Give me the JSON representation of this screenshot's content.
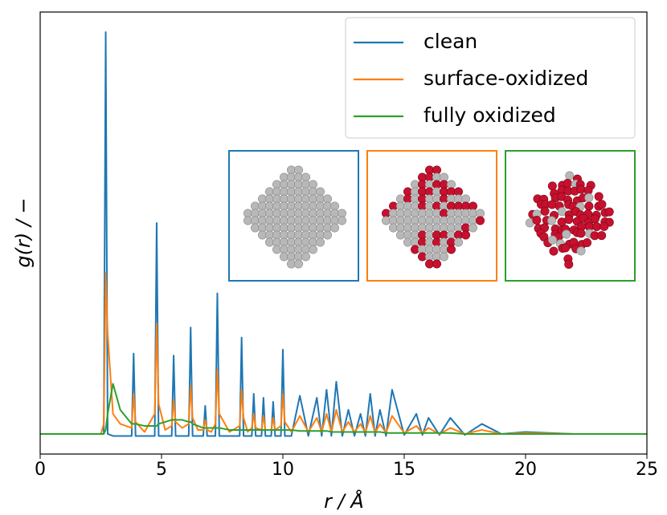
{
  "chart_data": {
    "type": "line",
    "x_label": "r / Å",
    "y_label": "g(r) / −",
    "x": [
      0,
      2.5,
      2.62,
      2.7,
      2.78,
      3.0,
      3.3,
      3.77,
      3.85,
      3.93,
      4.3,
      4.72,
      4.8,
      4.88,
      5.15,
      5.42,
      5.5,
      5.58,
      5.85,
      6.12,
      6.2,
      6.28,
      6.5,
      6.72,
      6.8,
      6.88,
      7.05,
      7.22,
      7.3,
      7.38,
      7.8,
      8.22,
      8.3,
      8.38,
      8.55,
      8.72,
      8.8,
      8.88,
      9.12,
      9.2,
      9.28,
      9.52,
      9.6,
      9.68,
      9.92,
      10.0,
      10.08,
      10.35,
      10.7,
      11.05,
      11.4,
      11.6,
      11.8,
      12.0,
      12.2,
      12.45,
      12.7,
      12.95,
      13.2,
      13.4,
      13.6,
      13.8,
      14.0,
      14.25,
      14.5,
      15.0,
      15.5,
      15.75,
      16.0,
      16.45,
      16.9,
      17.5,
      18.2,
      19,
      20,
      22,
      25
    ],
    "series": [
      {
        "name": "clean",
        "color": "#1f77b4",
        "values": [
          1,
          1,
          1,
          21,
          1,
          0.9,
          0.9,
          0.9,
          5,
          0.9,
          0.9,
          0.9,
          11.5,
          0.9,
          0.9,
          0.9,
          4.9,
          0.9,
          0.9,
          0.9,
          6.3,
          0.9,
          0.9,
          0.9,
          2.4,
          0.9,
          0.9,
          0.9,
          8.0,
          0.9,
          0.9,
          0.9,
          5.8,
          0.9,
          0.9,
          0.9,
          3.0,
          0.9,
          0.9,
          2.8,
          0.9,
          0.9,
          2.6,
          0.9,
          0.9,
          5.2,
          0.9,
          0.9,
          2.9,
          0.9,
          2.8,
          0.9,
          3.2,
          0.9,
          3.6,
          0.9,
          2.2,
          0.9,
          2.0,
          0.9,
          3.0,
          0.9,
          2.2,
          0.9,
          3.2,
          0.95,
          2.0,
          0.95,
          1.8,
          0.95,
          1.8,
          0.95,
          1.5,
          1.0,
          1.1,
          1.0,
          1.0
        ]
      },
      {
        "name": "surface-oxidized",
        "color": "#ff7f0e",
        "values": [
          1,
          1,
          1.5,
          9,
          6,
          2,
          1.5,
          1.3,
          3,
          1.6,
          1.1,
          2,
          6.5,
          2.5,
          1.2,
          1.4,
          2.7,
          1.6,
          1.3,
          1.5,
          3.4,
          1.8,
          1.2,
          1.2,
          1.7,
          1.2,
          1.1,
          1.5,
          4.2,
          2,
          1.1,
          1.4,
          3.2,
          1.8,
          1.1,
          1.3,
          2.0,
          1.3,
          1.2,
          1.9,
          1.2,
          1.2,
          1.8,
          1.2,
          1.4,
          3.0,
          1.6,
          1.1,
          1.9,
          1.1,
          1.8,
          1.1,
          2.0,
          1.1,
          2.2,
          1.1,
          1.6,
          1.1,
          1.5,
          1.05,
          1.9,
          1.05,
          1.5,
          1.05,
          1.9,
          1.05,
          1.4,
          1.05,
          1.3,
          1.0,
          1.3,
          1.0,
          1.2,
          1.0,
          1.05,
          1.0,
          1.0
        ]
      },
      {
        "name": "fully oxidized",
        "color": "#2ca02c",
        "values": [
          1,
          1,
          1,
          1.2,
          2,
          3.5,
          2.2,
          1.5,
          1.5,
          1.5,
          1.4,
          1.4,
          1.4,
          1.5,
          1.6,
          1.7,
          1.7,
          1.7,
          1.7,
          1.6,
          1.6,
          1.5,
          1.4,
          1.3,
          1.3,
          1.3,
          1.3,
          1.3,
          1.3,
          1.3,
          1.2,
          1.2,
          1.2,
          1.2,
          1.2,
          1.2,
          1.2,
          1.2,
          1.2,
          1.2,
          1.2,
          1.2,
          1.2,
          1.2,
          1.2,
          1.2,
          1.2,
          1.2,
          1.15,
          1.15,
          1.15,
          1.15,
          1.15,
          1.1,
          1.1,
          1.1,
          1.1,
          1.1,
          1.1,
          1.1,
          1.1,
          1.1,
          1.1,
          1.05,
          1.05,
          1.05,
          1.05,
          1.05,
          1.05,
          1.05,
          1.05,
          1.0,
          1.0,
          1.0,
          1.0,
          1.0,
          1.0
        ]
      }
    ],
    "xlim": [
      0,
      25
    ],
    "xticks": [
      0,
      5,
      10,
      15,
      20,
      25
    ],
    "ylim": [
      0,
      22
    ],
    "legend": "upper right",
    "grid": false
  }
}
